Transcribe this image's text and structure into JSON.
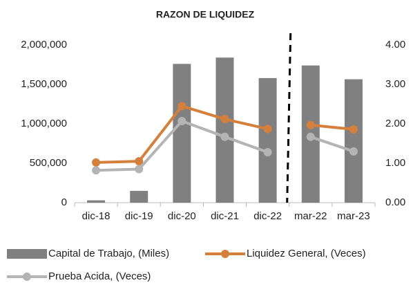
{
  "chart_data": {
    "type": "bar_line",
    "title": "RAZON DE LIQUIDEZ",
    "categories": [
      "dic-18",
      "dic-19",
      "dic-20",
      "dic-21",
      "dic-22",
      "mar-22",
      "mar-23"
    ],
    "series": [
      {
        "name": "Capital de Trabajo, (Miles)",
        "type": "bar",
        "color": "#808080",
        "values": [
          30000,
          150000,
          1760000,
          1840000,
          1580000,
          1740000,
          1565000
        ]
      },
      {
        "name": "Liquidez General, (Veces)",
        "type": "line",
        "axis": "y2",
        "color": "#d4803c",
        "values": [
          1.02,
          1.05,
          2.45,
          2.12,
          1.87,
          1.97,
          1.86
        ]
      },
      {
        "name": "Prueba Acida, (Veces)",
        "type": "line",
        "axis": "y2",
        "color": "#b4b4b4",
        "values": [
          0.82,
          0.85,
          2.07,
          1.67,
          1.28,
          1.67,
          1.3
        ]
      }
    ],
    "ylim": [
      0,
      2000000
    ],
    "yticks": [
      0,
      {
        "value": 500000,
        "label": "500,000"
      },
      {
        "value": 1000000,
        "label": "1,000,000"
      },
      {
        "value": 1500000,
        "label": "1,500,000"
      },
      {
        "value": 2000000,
        "label": "2,000,000"
      }
    ],
    "y2lim": [
      0,
      4
    ],
    "y2ticks": [
      {
        "value": 0,
        "label": "0.00"
      },
      {
        "value": 1,
        "label": "1.00"
      },
      {
        "value": 2,
        "label": "2.00"
      },
      {
        "value": 3,
        "label": "3.00"
      },
      {
        "value": 4,
        "label": "4.00"
      }
    ],
    "divider_after": 4,
    "grid": false,
    "legend": "bottom"
  }
}
